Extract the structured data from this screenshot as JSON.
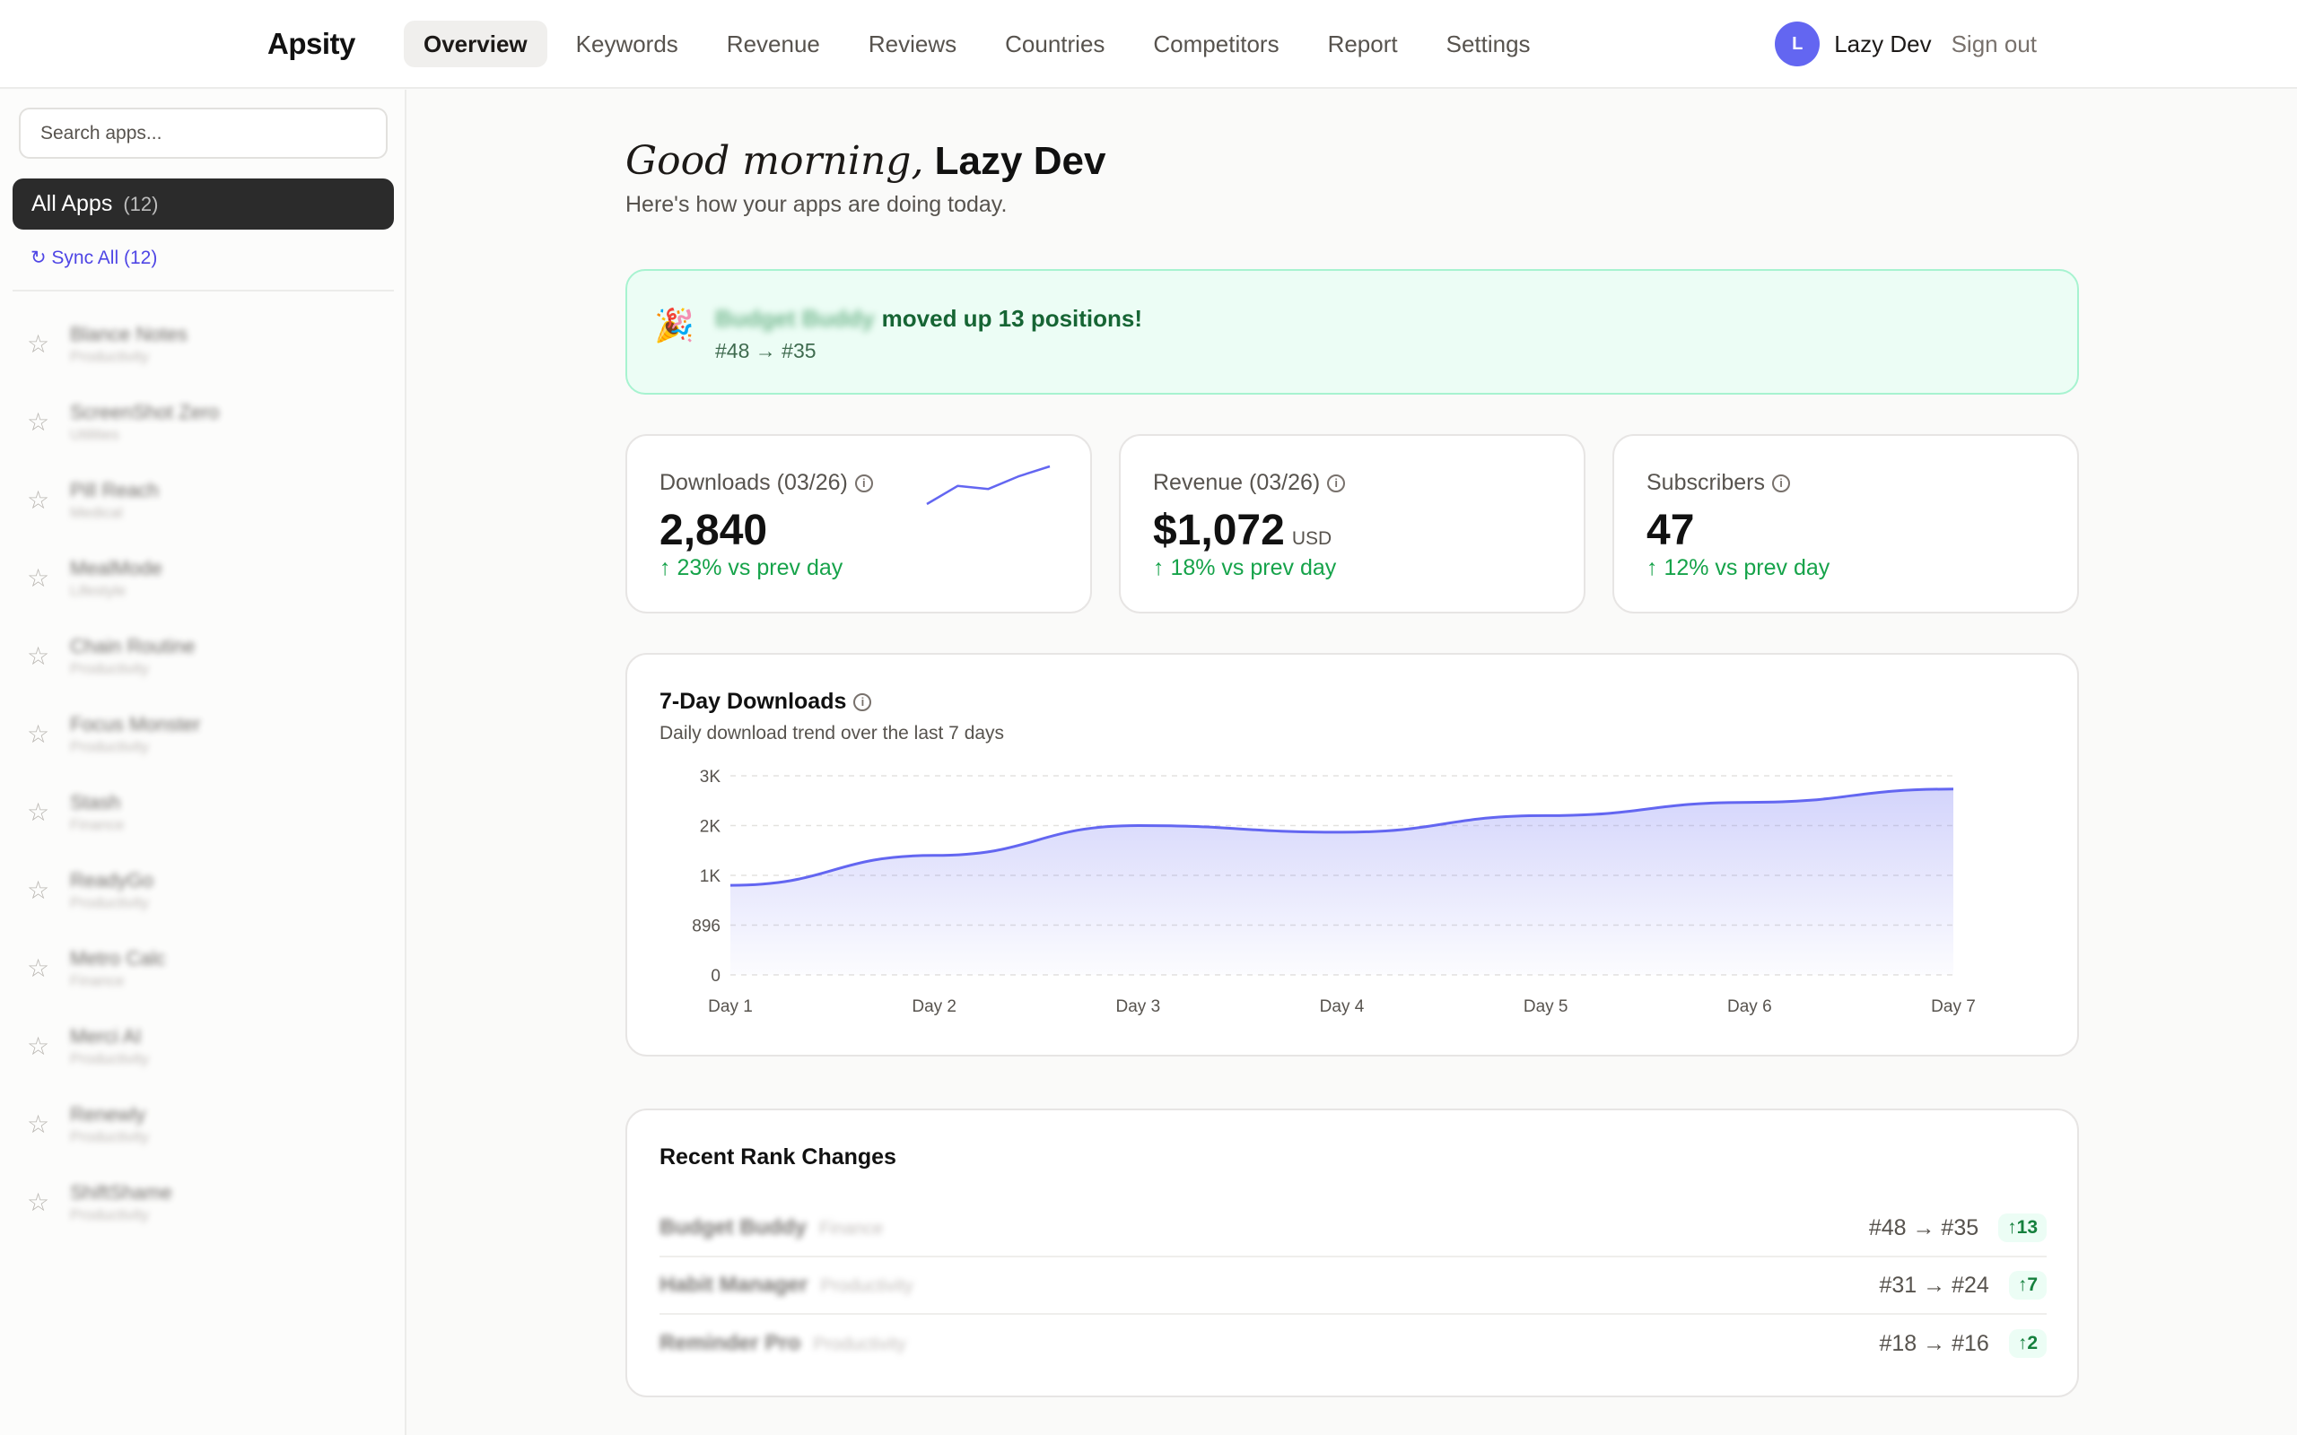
{
  "brand": "Apsity",
  "nav": [
    "Overview",
    "Keywords",
    "Revenue",
    "Reviews",
    "Countries",
    "Competitors",
    "Report",
    "Settings"
  ],
  "user": {
    "initial": "L",
    "name": "Lazy Dev",
    "signout": "Sign out"
  },
  "sidebar": {
    "search_placeholder": "Search apps...",
    "all_apps": {
      "label": "All Apps",
      "count": "(12)"
    },
    "sync": "↻ Sync All (12)",
    "apps": [
      {
        "name": "Blance Notes",
        "category": "Productivity"
      },
      {
        "name": "ScreenShot Zero",
        "category": "Utilities"
      },
      {
        "name": "Pill Reach",
        "category": "Medical"
      },
      {
        "name": "MealMode",
        "category": "Lifestyle"
      },
      {
        "name": "Chain Routine",
        "category": "Productivity"
      },
      {
        "name": "Focus Monster",
        "category": "Productivity"
      },
      {
        "name": "Stash",
        "category": "Finance"
      },
      {
        "name": "ReadyGo",
        "category": "Productivity"
      },
      {
        "name": "Metro Calc",
        "category": "Finance"
      },
      {
        "name": "Merci AI",
        "category": "Productivity"
      },
      {
        "name": "Renewly",
        "category": "Productivity"
      },
      {
        "name": "ShiftShame",
        "category": "Productivity"
      }
    ]
  },
  "greeting": {
    "prefix": "Good morning,",
    "name": "Lazy Dev",
    "subtitle": "Here's how your apps are doing today."
  },
  "banner": {
    "icon": "🎉",
    "app": "Budget Buddy",
    "message": "moved up 13 positions!",
    "detail": "#48 → #35"
  },
  "stats": [
    {
      "title": "Downloads (03/26)",
      "value": "2,840",
      "unit": "",
      "change": "↑ 23% vs prev day",
      "sparkline": [
        18,
        42,
        38,
        55,
        68
      ]
    },
    {
      "title": "Revenue (03/26)",
      "value": "$1,072",
      "unit": "USD",
      "change": "↑ 18% vs prev day"
    },
    {
      "title": "Subscribers",
      "value": "47",
      "unit": "",
      "change": "↑ 12% vs prev day"
    }
  ],
  "chart_data": {
    "type": "area",
    "title": "7-Day Downloads",
    "subtitle": "Daily download trend over the last 7 days",
    "categories": [
      "Day 1",
      "Day 2",
      "Day 3",
      "Day 4",
      "Day 5",
      "Day 6",
      "Day 7"
    ],
    "values": [
      1350,
      1800,
      2250,
      2150,
      2400,
      2600,
      2800
    ],
    "ytick_labels": [
      "0",
      "896",
      "1K",
      "2K",
      "3K"
    ],
    "ylim": [
      0,
      3000
    ],
    "grid": true,
    "color": "#6366f1"
  },
  "rank_changes": {
    "title": "Recent Rank Changes",
    "rows": [
      {
        "app": "Budget Buddy",
        "category": "Finance",
        "move": "#48 → #35",
        "delta": "↑13"
      },
      {
        "app": "Habit Manager",
        "category": "Productivity",
        "move": "#31 → #24",
        "delta": "↑7"
      },
      {
        "app": "Reminder Pro",
        "category": "Productivity",
        "move": "#18 → #16",
        "delta": "↑2"
      }
    ]
  }
}
